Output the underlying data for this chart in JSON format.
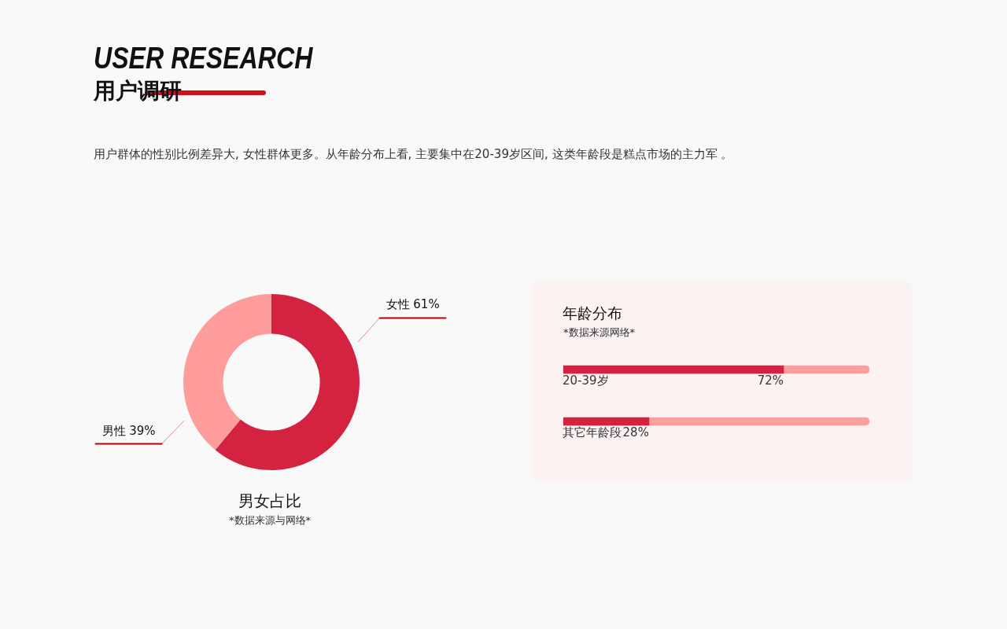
{
  "chart_data": [
    {
      "type": "other",
      "title": "USER RESEARCH",
      "subtitle": "用户调研",
      "annotations": [
        "用户群体的性别比例差异大, 女性群体更多。从年龄分布上看, 主要集中在20-39岁区间, 这类年龄段是糕点市场的主力军 。"
      ]
    },
    {
      "type": "donut",
      "title": "男女占比",
      "subtitle": "*数据来源与网络*",
      "categories": [
        "女性",
        "男性"
      ],
      "values": [
        61,
        39
      ],
      "colors": [
        "#d42241",
        "#ff9c9c"
      ],
      "value_labels": [
        "61%",
        "39%"
      ],
      "legend": false
    },
    {
      "type": "bar",
      "orientation": "horizontal",
      "stacked": true,
      "title": "年龄分布",
      "subtitle": "*数据来源网络*",
      "categories": [
        "20-39岁",
        "其它年龄段"
      ],
      "series": [
        {
          "color": "#d42241",
          "values": [
            72,
            28
          ],
          "value_labels": [
            "72%",
            "28%"
          ]
        },
        {
          "color": "#ff9e9e",
          "values": [
            28,
            72
          ]
        }
      ],
      "xlim": [
        0,
        100
      ],
      "legend": false,
      "tick_labels": "y"
    }
  ]
}
